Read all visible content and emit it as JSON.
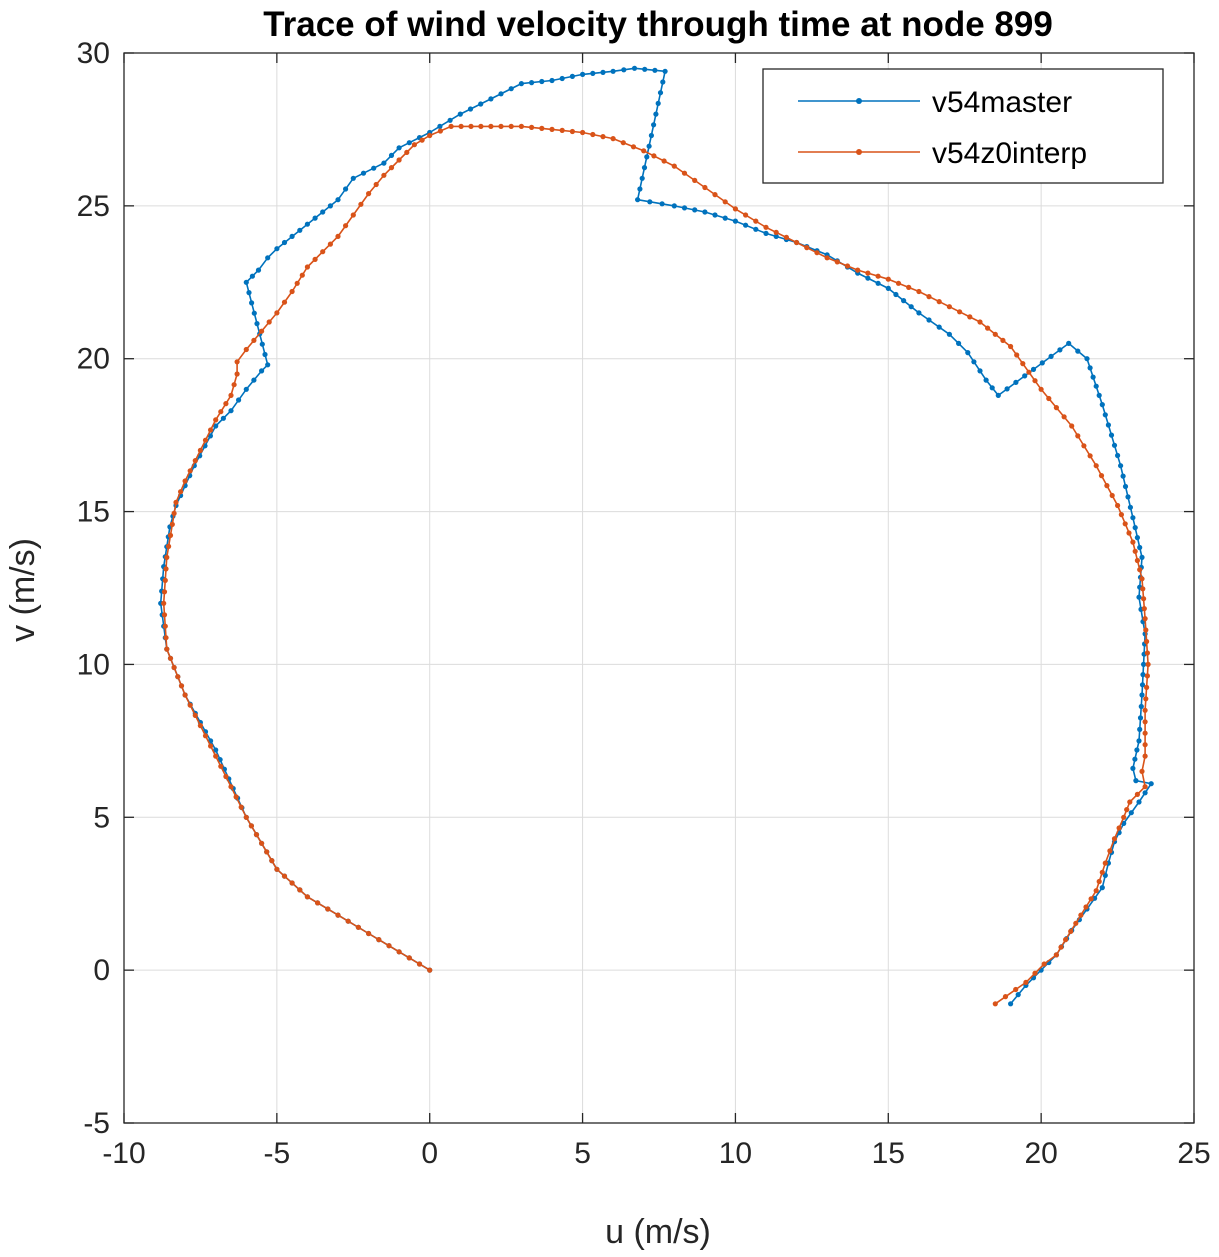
{
  "chart_data": {
    "type": "line",
    "title": "Trace of wind velocity through time at node 899",
    "xlabel": "u (m/s)",
    "ylabel": "v (m/s)",
    "xlim": [
      -10,
      25
    ],
    "ylim": [
      -5,
      30
    ],
    "xticks": [
      -10,
      -5,
      0,
      5,
      10,
      15,
      20,
      25
    ],
    "yticks": [
      -5,
      0,
      5,
      10,
      15,
      20,
      25,
      30
    ],
    "grid": true,
    "legend_position": "top-right",
    "series": [
      {
        "name": "v54master",
        "color": "#0072bd",
        "marker": "dot",
        "points": [
          [
            0,
            0
          ],
          [
            -1,
            0.6
          ],
          [
            -2,
            1.2
          ],
          [
            -3,
            1.8
          ],
          [
            -4,
            2.4
          ],
          [
            -5,
            3.3
          ],
          [
            -6,
            5.0
          ],
          [
            -7,
            7.2
          ],
          [
            -8,
            9.0
          ],
          [
            -8.6,
            10.5
          ],
          [
            -8.8,
            12.0
          ],
          [
            -8.7,
            13.2
          ],
          [
            -8.5,
            14.5
          ],
          [
            -8.3,
            15.2
          ],
          [
            -7.7,
            16.5
          ],
          [
            -7,
            17.8
          ],
          [
            -6.5,
            18.3
          ],
          [
            -6,
            19.0
          ],
          [
            -5.5,
            19.6
          ],
          [
            -5.3,
            19.8
          ],
          [
            -6,
            22.5
          ],
          [
            -5.6,
            22.9
          ],
          [
            -5.3,
            23.3
          ],
          [
            -5,
            23.6
          ],
          [
            -4,
            24.4
          ],
          [
            -3,
            25.2
          ],
          [
            -2.5,
            25.9
          ],
          [
            -1.5,
            26.4
          ],
          [
            -1,
            26.9
          ],
          [
            0,
            27.4
          ],
          [
            1,
            28.0
          ],
          [
            2,
            28.5
          ],
          [
            3,
            29.0
          ],
          [
            4,
            29.1
          ],
          [
            5,
            29.3
          ],
          [
            6,
            29.4
          ],
          [
            6.7,
            29.5
          ],
          [
            7.7,
            29.4
          ],
          [
            6.8,
            25.2
          ],
          [
            8,
            25.0
          ],
          [
            9,
            24.8
          ],
          [
            10,
            24.5
          ],
          [
            11,
            24.1
          ],
          [
            12,
            23.8
          ],
          [
            13,
            23.4
          ],
          [
            14,
            22.8
          ],
          [
            15,
            22.3
          ],
          [
            16,
            21.5
          ],
          [
            17,
            20.8
          ],
          [
            17.6,
            20.2
          ],
          [
            18.2,
            19.3
          ],
          [
            18.6,
            18.8
          ],
          [
            20.9,
            20.5
          ],
          [
            21.5,
            20.0
          ],
          [
            22,
            18.5
          ],
          [
            22.6,
            16.5
          ],
          [
            23,
            14.8
          ],
          [
            23.3,
            13.5
          ],
          [
            23.2,
            12.2
          ],
          [
            23.4,
            11.0
          ],
          [
            23.3,
            9.0
          ],
          [
            23.2,
            7.5
          ],
          [
            23.0,
            6.6
          ],
          [
            23.1,
            6.2
          ],
          [
            23.6,
            6.1
          ],
          [
            23.2,
            5.5
          ],
          [
            22.7,
            4.8
          ],
          [
            22.4,
            4.2
          ],
          [
            22.2,
            3.5
          ],
          [
            22.0,
            2.7
          ],
          [
            21.5,
            2.0
          ],
          [
            21.0,
            1.3
          ],
          [
            20.5,
            0.5
          ],
          [
            20,
            0
          ],
          [
            19.5,
            -0.5
          ],
          [
            19,
            -1.1
          ]
        ]
      },
      {
        "name": "v54z0interp",
        "color": "#d95319",
        "marker": "dot",
        "points": [
          [
            0,
            0
          ],
          [
            -1,
            0.6
          ],
          [
            -2,
            1.2
          ],
          [
            -3,
            1.8
          ],
          [
            -4,
            2.4
          ],
          [
            -5,
            3.3
          ],
          [
            -6,
            5.0
          ],
          [
            -7,
            7.0
          ],
          [
            -8,
            9.0
          ],
          [
            -8.6,
            10.5
          ],
          [
            -8.7,
            12.0
          ],
          [
            -8.6,
            13.5
          ],
          [
            -8.3,
            15.3
          ],
          [
            -8,
            16.0
          ],
          [
            -7.5,
            17.0
          ],
          [
            -7,
            18.0
          ],
          [
            -6.5,
            18.8
          ],
          [
            -6.3,
            19.5
          ],
          [
            -6.3,
            19.9
          ],
          [
            -6,
            20.3
          ],
          [
            -5,
            21.5
          ],
          [
            -4.5,
            22.2
          ],
          [
            -4,
            23.0
          ],
          [
            -3,
            24.0
          ],
          [
            -2.5,
            24.7
          ],
          [
            -2,
            25.4
          ],
          [
            -1.5,
            26.0
          ],
          [
            -1,
            26.5
          ],
          [
            -0.5,
            27.0
          ],
          [
            0,
            27.3
          ],
          [
            0.7,
            27.6
          ],
          [
            2,
            27.6
          ],
          [
            3,
            27.6
          ],
          [
            4,
            27.5
          ],
          [
            5,
            27.4
          ],
          [
            6,
            27.2
          ],
          [
            7,
            26.8
          ],
          [
            8,
            26.3
          ],
          [
            9,
            25.6
          ],
          [
            10,
            24.9
          ],
          [
            11,
            24.3
          ],
          [
            12,
            23.8
          ],
          [
            13,
            23.3
          ],
          [
            14,
            22.9
          ],
          [
            15,
            22.6
          ],
          [
            16,
            22.2
          ],
          [
            17,
            21.7
          ],
          [
            18,
            21.2
          ],
          [
            19,
            20.4
          ],
          [
            20,
            19.0
          ],
          [
            21,
            17.8
          ],
          [
            21.8,
            16.5
          ],
          [
            22.5,
            15.2
          ],
          [
            23,
            14.0
          ],
          [
            23.3,
            12.8
          ],
          [
            23.4,
            11.5
          ],
          [
            23.5,
            10.0
          ],
          [
            23.4,
            8.5
          ],
          [
            23.4,
            7.0
          ],
          [
            23.3,
            6.5
          ],
          [
            23.4,
            6.0
          ],
          [
            22.9,
            5.5
          ],
          [
            22.7,
            5.0
          ],
          [
            22.4,
            4.3
          ],
          [
            22.1,
            3.5
          ],
          [
            21.8,
            2.6
          ],
          [
            21.3,
            1.8
          ],
          [
            20.8,
            1.0
          ],
          [
            20.5,
            0.5
          ],
          [
            20.1,
            0.2
          ],
          [
            19.5,
            -0.4
          ],
          [
            18.5,
            -1.1
          ]
        ]
      }
    ]
  }
}
